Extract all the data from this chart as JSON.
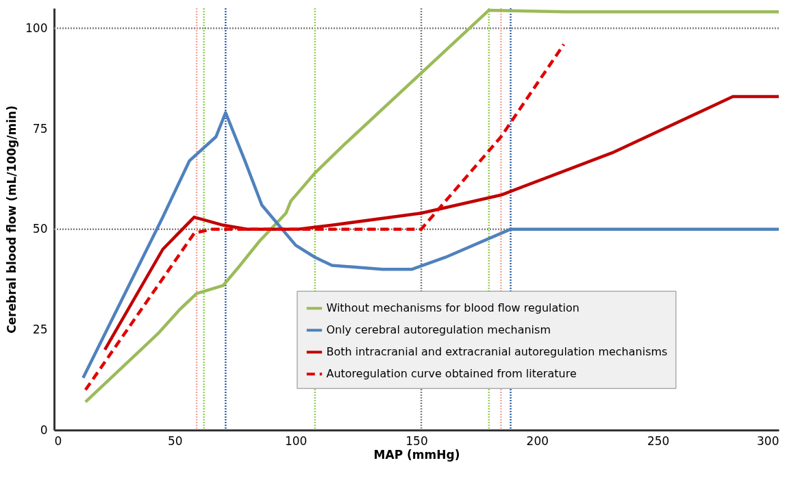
{
  "chart_data": {
    "type": "line",
    "xlabel": "MAP (mmHg)",
    "ylabel": "Cerebral blood flow (mL/100g/min)",
    "xlim": [
      0,
      300
    ],
    "xticks": [
      0,
      50,
      100,
      150,
      200,
      250,
      300
    ],
    "ylim": [
      0,
      105
    ],
    "yticks": [
      0,
      25,
      50,
      75,
      100
    ],
    "grid": false,
    "legend": "bottom right",
    "marker": "none",
    "series": [
      {
        "name": "Without mechanisms for blood flow regulation",
        "color": "#9bbb59",
        "line_style": "solid",
        "x": [
          13,
          43,
          52,
          59,
          70,
          77,
          85,
          96,
          98,
          108,
          120,
          180,
          212,
          300
        ],
        "values": [
          7,
          24,
          30,
          34,
          36,
          41,
          47,
          54,
          57,
          64,
          71,
          104.5,
          104.1,
          104.1
        ]
      },
      {
        "name": "Only cerebral autoregulation mechanism",
        "color": "#4f81bd",
        "line_style": "solid",
        "x": [
          12,
          45,
          56,
          67,
          71,
          79,
          86,
          100,
          108,
          115,
          136,
          148,
          162,
          189,
          300
        ],
        "values": [
          13,
          53,
          67,
          73,
          79,
          67,
          56,
          46,
          43,
          41,
          40,
          40,
          43,
          50,
          50
        ]
      },
      {
        "name": "Both intracranial and extracranial autoregulation mechanisms",
        "color": "#c00000",
        "line_style": "solid",
        "x": [
          21,
          45,
          58,
          70,
          80,
          101,
          115,
          152,
          185,
          231,
          281,
          300
        ],
        "values": [
          20,
          45,
          53,
          51,
          50,
          50,
          51,
          54,
          58.5,
          69,
          83,
          83
        ]
      },
      {
        "name": "Autoregulation curve obtained from literature",
        "color": "#e00000",
        "line_style": "dashed",
        "x": [
          13,
          58,
          65,
          152,
          185,
          211
        ],
        "values": [
          10,
          49,
          50,
          50,
          73,
          96
        ]
      }
    ],
    "ref_lines": [
      {
        "axis": "y",
        "value": 100,
        "color": "#7f7f7f",
        "line_style": "dotted"
      },
      {
        "axis": "y",
        "value": 50,
        "color": "#7f7f7f",
        "line_style": "dotted"
      },
      {
        "axis": "x",
        "value": 59,
        "color": "#f4a6a0",
        "line_style": "dotted"
      },
      {
        "axis": "x",
        "value": 62,
        "color": "#92d050",
        "line_style": "dotted"
      },
      {
        "axis": "x",
        "value": 71,
        "color": "#2e5fa8",
        "line_style": "dotted"
      },
      {
        "axis": "x",
        "value": 108,
        "color": "#92d050",
        "line_style": "dotted"
      },
      {
        "axis": "x",
        "value": 152,
        "color": "#7f7f7f",
        "line_style": "dotted"
      },
      {
        "axis": "x",
        "value": 180,
        "color": "#92d050",
        "line_style": "dotted"
      },
      {
        "axis": "x",
        "value": 185,
        "color": "#f4a6a0",
        "line_style": "dotted"
      },
      {
        "axis": "x",
        "value": 189,
        "color": "#2e5fa8",
        "line_style": "dotted"
      }
    ]
  }
}
